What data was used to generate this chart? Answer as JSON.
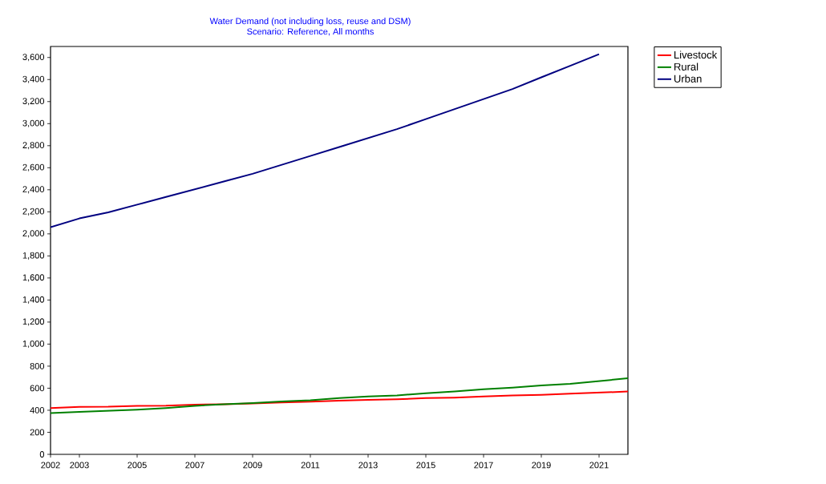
{
  "chart_data": {
    "type": "line",
    "title": "Water Demand (not including loss, reuse and DSM)",
    "subtitle": "Scenario: Reference,  All months",
    "x": [
      2002,
      2003,
      2004,
      2005,
      2006,
      2007,
      2008,
      2009,
      2010,
      2011,
      2012,
      2013,
      2014,
      2015,
      2016,
      2017,
      2018,
      2019,
      2020,
      2021,
      2022
    ],
    "series": [
      {
        "name": "Livestock",
        "color": "#ff0000",
        "values": [
          420,
          430,
          432,
          440,
          442,
          450,
          455,
          462,
          470,
          478,
          487,
          495,
          500,
          510,
          515,
          525,
          535,
          540,
          550,
          560,
          570
        ]
      },
      {
        "name": "Rural",
        "color": "#008000",
        "values": [
          375,
          385,
          395,
          405,
          420,
          440,
          455,
          465,
          480,
          490,
          510,
          525,
          535,
          555,
          570,
          590,
          605,
          625,
          640,
          665,
          690
        ]
      },
      {
        "name": "Urban",
        "color": "#000080",
        "values": [
          2060,
          2140,
          2195,
          2265,
          2335,
          2405,
          2475,
          2545,
          2626,
          2707,
          2788,
          2869,
          2950,
          3041,
          3132,
          3223,
          3314,
          3420,
          3525,
          3630,
          null
        ]
      }
    ],
    "xlim": [
      2002,
      2022
    ],
    "xticks": [
      2002,
      2003,
      2005,
      2007,
      2009,
      2011,
      2013,
      2015,
      2017,
      2019,
      2021
    ],
    "ylim": [
      0,
      3700
    ],
    "yticks": [
      0,
      200,
      400,
      600,
      800,
      {
        "value": 1000,
        "label": "1,000"
      },
      {
        "value": 1200,
        "label": "1,200"
      },
      {
        "value": 1400,
        "label": "1,400"
      },
      {
        "value": 1600,
        "label": "1,600"
      },
      {
        "value": 1800,
        "label": "1,800"
      },
      {
        "value": 2000,
        "label": "2,000"
      },
      {
        "value": 2200,
        "label": "2,200"
      },
      {
        "value": 2400,
        "label": "2,400"
      },
      {
        "value": 2600,
        "label": "2,600"
      },
      {
        "value": 2800,
        "label": "2,800"
      },
      {
        "value": 3000,
        "label": "3,000"
      },
      {
        "value": 3200,
        "label": "3,200"
      },
      {
        "value": 3400,
        "label": "3,400"
      },
      {
        "value": 3600,
        "label": "3,600"
      }
    ],
    "grid": false,
    "legend": "top right",
    "marker": "none",
    "line_style": "solid"
  }
}
